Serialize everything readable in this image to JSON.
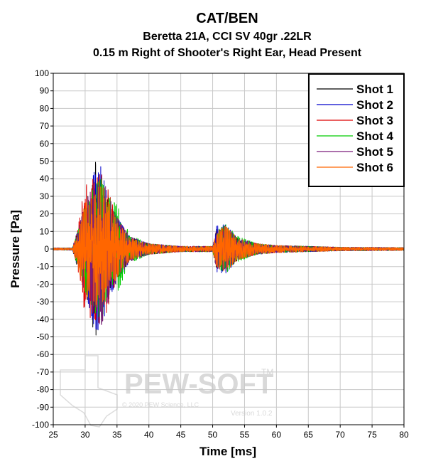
{
  "chart_data": {
    "type": "line",
    "title": "CAT/BEN",
    "subtitle": [
      "Beretta 21A, CCI SV 40gr .22LR",
      "0.15 m Right of Shooter's Right Ear, Head Present"
    ],
    "xlabel": "Time [ms]",
    "ylabel": "Pressure [Pa]",
    "xlim": [
      25,
      80
    ],
    "ylim": [
      -100,
      100
    ],
    "xticks": [
      25,
      30,
      35,
      40,
      45,
      50,
      55,
      60,
      65,
      70,
      75,
      80
    ],
    "yticks": [
      100,
      90,
      80,
      70,
      60,
      50,
      40,
      30,
      20,
      10,
      0,
      -10,
      -20,
      -30,
      -40,
      -50,
      -60,
      -70,
      -80,
      -90,
      -100
    ],
    "grid": true,
    "legend_position": "top-right",
    "series": [
      {
        "name": "Shot 1",
        "color": "#000000",
        "envelope": [
          [
            25,
            0.6
          ],
          [
            28,
            0.6
          ],
          [
            28.7,
            9
          ],
          [
            30,
            22
          ],
          [
            31.5,
            50
          ],
          [
            32.5,
            45
          ],
          [
            33.5,
            28
          ],
          [
            35,
            17
          ],
          [
            37,
            7
          ],
          [
            40,
            3
          ],
          [
            45,
            1.5
          ],
          [
            50,
            1.5
          ],
          [
            50.6,
            11
          ],
          [
            52,
            13
          ],
          [
            54,
            6
          ],
          [
            57,
            3
          ],
          [
            60,
            2
          ],
          [
            70,
            1
          ],
          [
            80,
            0.8
          ]
        ]
      },
      {
        "name": "Shot 2",
        "color": "#0000cc",
        "envelope": [
          [
            25,
            0.6
          ],
          [
            28,
            0.6
          ],
          [
            28.7,
            9
          ],
          [
            30,
            24
          ],
          [
            31.5,
            45
          ],
          [
            32.5,
            47
          ],
          [
            33.5,
            30
          ],
          [
            35,
            18
          ],
          [
            37,
            7
          ],
          [
            40,
            3
          ],
          [
            45,
            1.5
          ],
          [
            50,
            1.5
          ],
          [
            50.6,
            13
          ],
          [
            52,
            14
          ],
          [
            54,
            6
          ],
          [
            57,
            3
          ],
          [
            60,
            2
          ],
          [
            70,
            1
          ],
          [
            80,
            0.8
          ]
        ]
      },
      {
        "name": "Shot 3",
        "color": "#dd0000",
        "envelope": [
          [
            25,
            0.6
          ],
          [
            28,
            0.6
          ],
          [
            28.7,
            8
          ],
          [
            30,
            38
          ],
          [
            31.5,
            40
          ],
          [
            32.5,
            43
          ],
          [
            33.5,
            35
          ],
          [
            35,
            16
          ],
          [
            37,
            6
          ],
          [
            40,
            3
          ],
          [
            45,
            1.5
          ],
          [
            50,
            1.5
          ],
          [
            50.6,
            10
          ],
          [
            52,
            12
          ],
          [
            54,
            6
          ],
          [
            57,
            3
          ],
          [
            60,
            2
          ],
          [
            70,
            1
          ],
          [
            80,
            0.8
          ]
        ]
      },
      {
        "name": "Shot 4",
        "color": "#00cc00",
        "envelope": [
          [
            25,
            0.6
          ],
          [
            28,
            0.6
          ],
          [
            28.7,
            8
          ],
          [
            30,
            24
          ],
          [
            31.5,
            36
          ],
          [
            32.5,
            40
          ],
          [
            33.5,
            30
          ],
          [
            35,
            25
          ],
          [
            37,
            8
          ],
          [
            40,
            3
          ],
          [
            45,
            1.5
          ],
          [
            50,
            1.5
          ],
          [
            50.6,
            10
          ],
          [
            52,
            14
          ],
          [
            54,
            7
          ],
          [
            57,
            3
          ],
          [
            60,
            2
          ],
          [
            70,
            1
          ],
          [
            80,
            0.8
          ]
        ]
      },
      {
        "name": "Shot 5",
        "color": "#7b1a7b",
        "envelope": [
          [
            25,
            0.6
          ],
          [
            28,
            0.6
          ],
          [
            28.7,
            8
          ],
          [
            30,
            26
          ],
          [
            31.5,
            38
          ],
          [
            32.5,
            44
          ],
          [
            33.5,
            32
          ],
          [
            35,
            18
          ],
          [
            37,
            7
          ],
          [
            40,
            3
          ],
          [
            45,
            1.5
          ],
          [
            50,
            1.5
          ],
          [
            50.6,
            11
          ],
          [
            52,
            12
          ],
          [
            54,
            6
          ],
          [
            57,
            3
          ],
          [
            60,
            2
          ],
          [
            70,
            1
          ],
          [
            80,
            0.8
          ]
        ]
      },
      {
        "name": "Shot 6",
        "color": "#ff6600",
        "envelope": [
          [
            25,
            0.6
          ],
          [
            28,
            0.6
          ],
          [
            28.7,
            8
          ],
          [
            30,
            26
          ],
          [
            31.5,
            30
          ],
          [
            32.5,
            38
          ],
          [
            33.5,
            28
          ],
          [
            35,
            16
          ],
          [
            37,
            6
          ],
          [
            40,
            3
          ],
          [
            45,
            1.5
          ],
          [
            50,
            1.5
          ],
          [
            50.6,
            10
          ],
          [
            52,
            13
          ],
          [
            54,
            6
          ],
          [
            57,
            3
          ],
          [
            60,
            2
          ],
          [
            70,
            1
          ],
          [
            80,
            0.8
          ]
        ]
      }
    ]
  },
  "watermark": {
    "brand": "PEW-SOFT",
    "tm": "TM",
    "copyright": "© 2020 PEW Science, LLC",
    "version": "Version 1.0.2"
  }
}
